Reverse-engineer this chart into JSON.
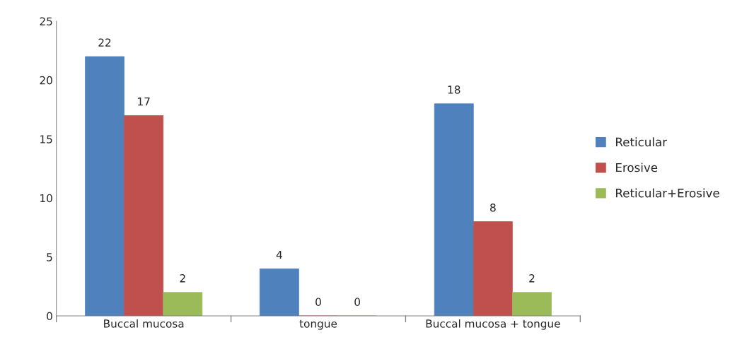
{
  "chart_data": {
    "type": "bar",
    "categories": [
      "Buccal mucosa",
      "tongue",
      "Buccal mucosa + tongue"
    ],
    "series": [
      {
        "name": "Reticular",
        "color": "#4f81bd",
        "values": [
          22,
          4,
          18
        ]
      },
      {
        "name": "Erosive",
        "color": "#c0504d",
        "values": [
          17,
          0,
          8
        ]
      },
      {
        "name": "Reticular+Erosive",
        "color": "#9bbb59",
        "values": [
          2,
          0,
          2
        ]
      }
    ],
    "ylim": [
      0,
      25
    ],
    "yticks": [
      0,
      5,
      10,
      15,
      20,
      25
    ],
    "grid": false,
    "legend": "right",
    "data_labels": true
  }
}
